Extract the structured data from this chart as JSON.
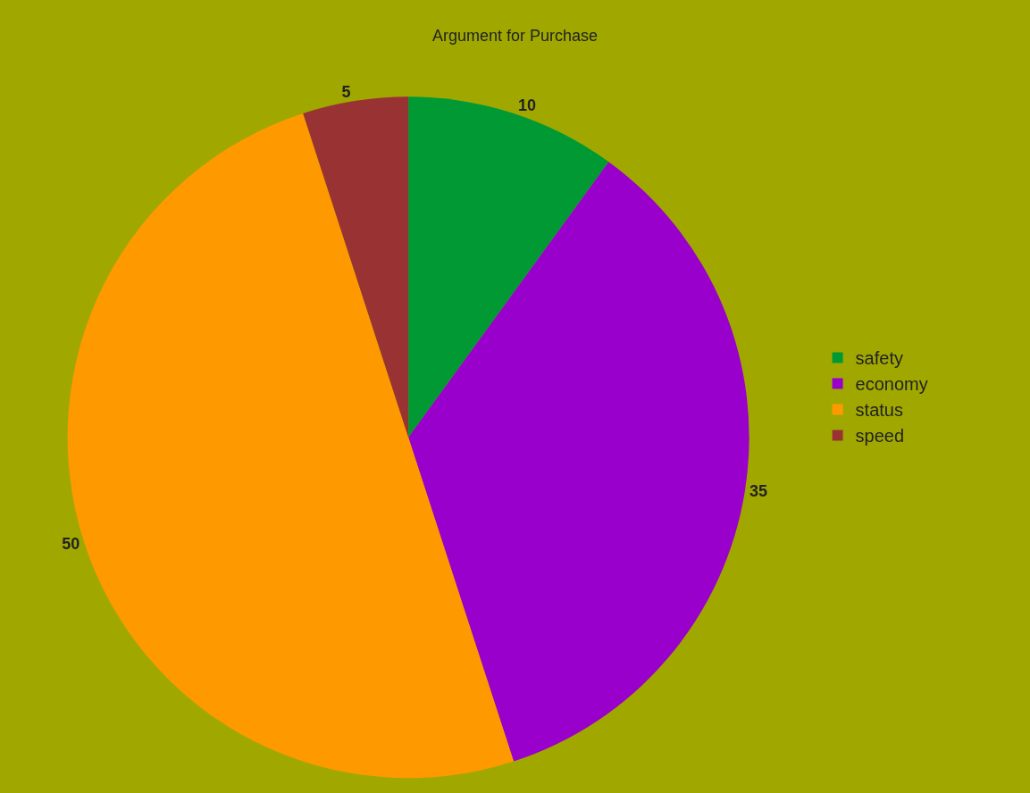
{
  "chart_data": {
    "type": "pie",
    "title": "Argument for Purchase",
    "categories": [
      "safety",
      "economy",
      "status",
      "speed"
    ],
    "values": [
      10,
      35,
      50,
      5
    ],
    "colors": [
      "#009933",
      "#9900cc",
      "#ff9900",
      "#993333"
    ],
    "data_labels": true,
    "legend": "right"
  }
}
